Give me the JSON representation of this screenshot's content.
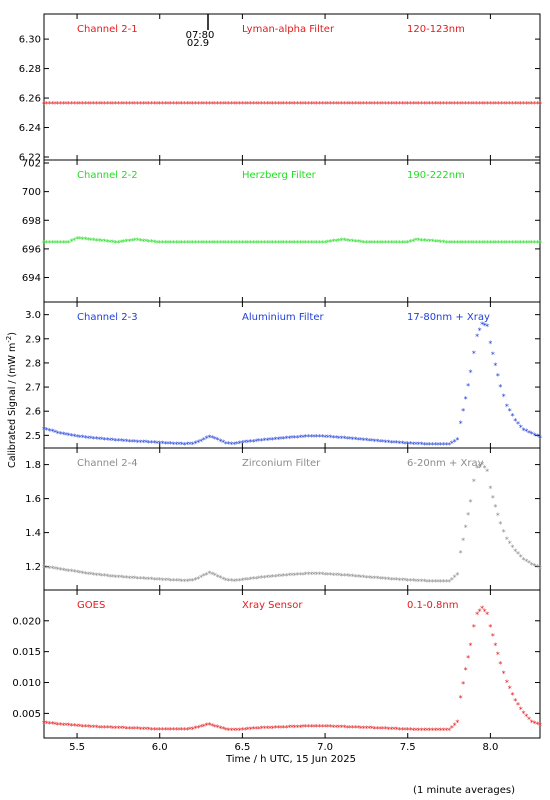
{
  "figure": {
    "xlabel": "Time / h UTC, 15 Jun 2025",
    "ylabel": "Calibrated Signal / (mW m",
    "ylabel_sup": "-2",
    "ylabel_close": ")",
    "footer": "(1 minute averages)",
    "marker_labels": [
      "07:80",
      "02.9"
    ]
  },
  "chart_data": [
    {
      "type": "scatter",
      "channel": "Channel 2-1",
      "filter": "Lyman-alpha Filter",
      "band": "120-123nm",
      "color": "#e41a1c",
      "xlim": [
        5.3,
        8.3
      ],
      "ylim": [
        6.22,
        6.315
      ],
      "y_ticks": [
        "6.22",
        "6.24",
        "6.26",
        "6.28",
        "6.30"
      ],
      "x_ticks": [
        "5.5",
        "6.0",
        "6.5",
        "7.0",
        "7.5",
        "8.0"
      ],
      "series": {
        "x": [
          5.3,
          5.5,
          5.75,
          6.0,
          6.25,
          6.5,
          6.75,
          7.0,
          7.25,
          7.5,
          7.75,
          8.0,
          8.3
        ],
        "y": [
          6.256,
          6.256,
          6.256,
          6.256,
          6.256,
          6.256,
          6.256,
          6.256,
          6.256,
          6.256,
          6.256,
          6.256,
          6.256
        ]
      }
    },
    {
      "type": "scatter",
      "channel": "Channel 2-2",
      "filter": "Herzberg Filter",
      "band": "190-222nm",
      "color": "#22dd22",
      "xlim": [
        5.3,
        8.3
      ],
      "ylim": [
        692.5,
        702
      ],
      "y_ticks": [
        "694",
        "696",
        "698",
        "700",
        "702"
      ],
      "x_ticks": [
        "5.5",
        "6.0",
        "6.5",
        "7.0",
        "7.5",
        "8.0"
      ],
      "series": {
        "x": [
          5.3,
          5.45,
          5.5,
          5.75,
          5.85,
          6.0,
          6.25,
          6.5,
          6.75,
          7.0,
          7.1,
          7.25,
          7.5,
          7.55,
          7.75,
          8.0,
          8.3
        ],
        "y": [
          696.4,
          696.4,
          696.7,
          696.4,
          696.6,
          696.4,
          696.4,
          696.4,
          696.4,
          696.4,
          696.6,
          696.4,
          696.4,
          696.6,
          696.4,
          696.4,
          696.4
        ]
      }
    },
    {
      "type": "scatter",
      "channel": "Channel 2-3",
      "filter": "Aluminium Filter",
      "band": "17-80nm + Xray",
      "color": "#1f3fd8",
      "xlim": [
        5.3,
        8.3
      ],
      "ylim": [
        2.46,
        3.04
      ],
      "y_ticks": [
        "2.5",
        "2.6",
        "2.7",
        "2.8",
        "2.9",
        "3.0"
      ],
      "x_ticks": [
        "5.5",
        "6.0",
        "6.5",
        "7.0",
        "7.5",
        "8.0"
      ],
      "series": {
        "x": [
          5.3,
          5.4,
          5.5,
          5.6,
          5.7,
          5.8,
          5.9,
          6.0,
          6.1,
          6.15,
          6.2,
          6.25,
          6.3,
          6.35,
          6.4,
          6.45,
          6.5,
          6.6,
          6.7,
          6.8,
          6.9,
          7.0,
          7.1,
          7.2,
          7.3,
          7.4,
          7.5,
          7.6,
          7.7,
          7.75,
          7.8,
          7.82,
          7.85,
          7.88,
          7.9,
          7.92,
          7.95,
          7.98,
          8.0,
          8.03,
          8.06,
          8.1,
          8.15,
          8.2,
          8.25,
          8.3
        ],
        "y": [
          2.525,
          2.505,
          2.493,
          2.485,
          2.479,
          2.474,
          2.47,
          2.466,
          2.462,
          2.461,
          2.462,
          2.475,
          2.492,
          2.48,
          2.465,
          2.462,
          2.468,
          2.476,
          2.482,
          2.488,
          2.493,
          2.492,
          2.487,
          2.481,
          2.475,
          2.469,
          2.464,
          2.461,
          2.46,
          2.46,
          2.48,
          2.55,
          2.65,
          2.76,
          2.84,
          2.91,
          2.96,
          2.95,
          2.88,
          2.79,
          2.7,
          2.62,
          2.56,
          2.52,
          2.505,
          2.49
        ]
      }
    },
    {
      "type": "scatter",
      "channel": "Channel 2-4",
      "filter": "Zirconium Filter",
      "band": "6-20nm + Xray",
      "color": "#8c8c8c",
      "xlim": [
        5.3,
        8.3
      ],
      "ylim": [
        1.08,
        1.88
      ],
      "y_ticks": [
        "1.2",
        "1.4",
        "1.6",
        "1.8"
      ],
      "x_ticks": [
        "5.5",
        "6.0",
        "6.5",
        "7.0",
        "7.5",
        "8.0"
      ],
      "series": {
        "x": [
          5.3,
          5.4,
          5.5,
          5.6,
          5.7,
          5.8,
          5.9,
          6.0,
          6.1,
          6.15,
          6.2,
          6.25,
          6.3,
          6.35,
          6.4,
          6.45,
          6.5,
          6.6,
          6.7,
          6.8,
          6.9,
          7.0,
          7.1,
          7.2,
          7.3,
          7.4,
          7.5,
          7.6,
          7.7,
          7.75,
          7.8,
          7.82,
          7.85,
          7.88,
          7.9,
          7.92,
          7.95,
          7.98,
          8.0,
          8.03,
          8.06,
          8.1,
          8.15,
          8.2,
          8.25,
          8.3
        ],
        "y": [
          1.195,
          1.18,
          1.165,
          1.15,
          1.14,
          1.132,
          1.126,
          1.12,
          1.115,
          1.113,
          1.115,
          1.135,
          1.16,
          1.14,
          1.118,
          1.112,
          1.118,
          1.13,
          1.14,
          1.148,
          1.153,
          1.152,
          1.146,
          1.138,
          1.13,
          1.122,
          1.116,
          1.111,
          1.108,
          1.108,
          1.15,
          1.28,
          1.43,
          1.58,
          1.7,
          1.78,
          1.8,
          1.76,
          1.66,
          1.55,
          1.45,
          1.36,
          1.29,
          1.24,
          1.21,
          1.19
        ]
      }
    },
    {
      "type": "scatter",
      "channel": "GOES",
      "filter": "Xray Sensor",
      "band": "0.1-0.8nm",
      "color": "#e41a1c",
      "xlim": [
        5.3,
        8.3
      ],
      "ylim": [
        0.0015,
        0.0245
      ],
      "y_ticks": [
        "0.005",
        "0.010",
        "0.015",
        "0.020"
      ],
      "x_ticks": [
        "5.5",
        "6.0",
        "6.5",
        "7.0",
        "7.5",
        "8.0"
      ],
      "series": {
        "x": [
          5.3,
          5.4,
          5.5,
          5.6,
          5.7,
          5.8,
          5.9,
          6.0,
          6.1,
          6.15,
          6.2,
          6.25,
          6.3,
          6.35,
          6.4,
          6.45,
          6.5,
          6.6,
          6.7,
          6.8,
          6.9,
          7.0,
          7.1,
          7.2,
          7.3,
          7.4,
          7.5,
          7.6,
          7.7,
          7.75,
          7.8,
          7.82,
          7.85,
          7.88,
          7.9,
          7.92,
          7.95,
          7.98,
          8.0,
          8.03,
          8.06,
          8.1,
          8.15,
          8.2,
          8.25,
          8.3
        ],
        "y": [
          0.0034,
          0.0031,
          0.0029,
          0.0027,
          0.0026,
          0.0025,
          0.0024,
          0.0023,
          0.0023,
          0.0023,
          0.0024,
          0.0028,
          0.0031,
          0.0027,
          0.0023,
          0.0022,
          0.0023,
          0.0025,
          0.0026,
          0.0027,
          0.0028,
          0.0028,
          0.0027,
          0.0026,
          0.0025,
          0.0024,
          0.0023,
          0.0022,
          0.0022,
          0.0022,
          0.0035,
          0.0075,
          0.012,
          0.016,
          0.019,
          0.021,
          0.022,
          0.021,
          0.019,
          0.016,
          0.013,
          0.01,
          0.007,
          0.005,
          0.0035,
          0.003
        ]
      }
    }
  ]
}
